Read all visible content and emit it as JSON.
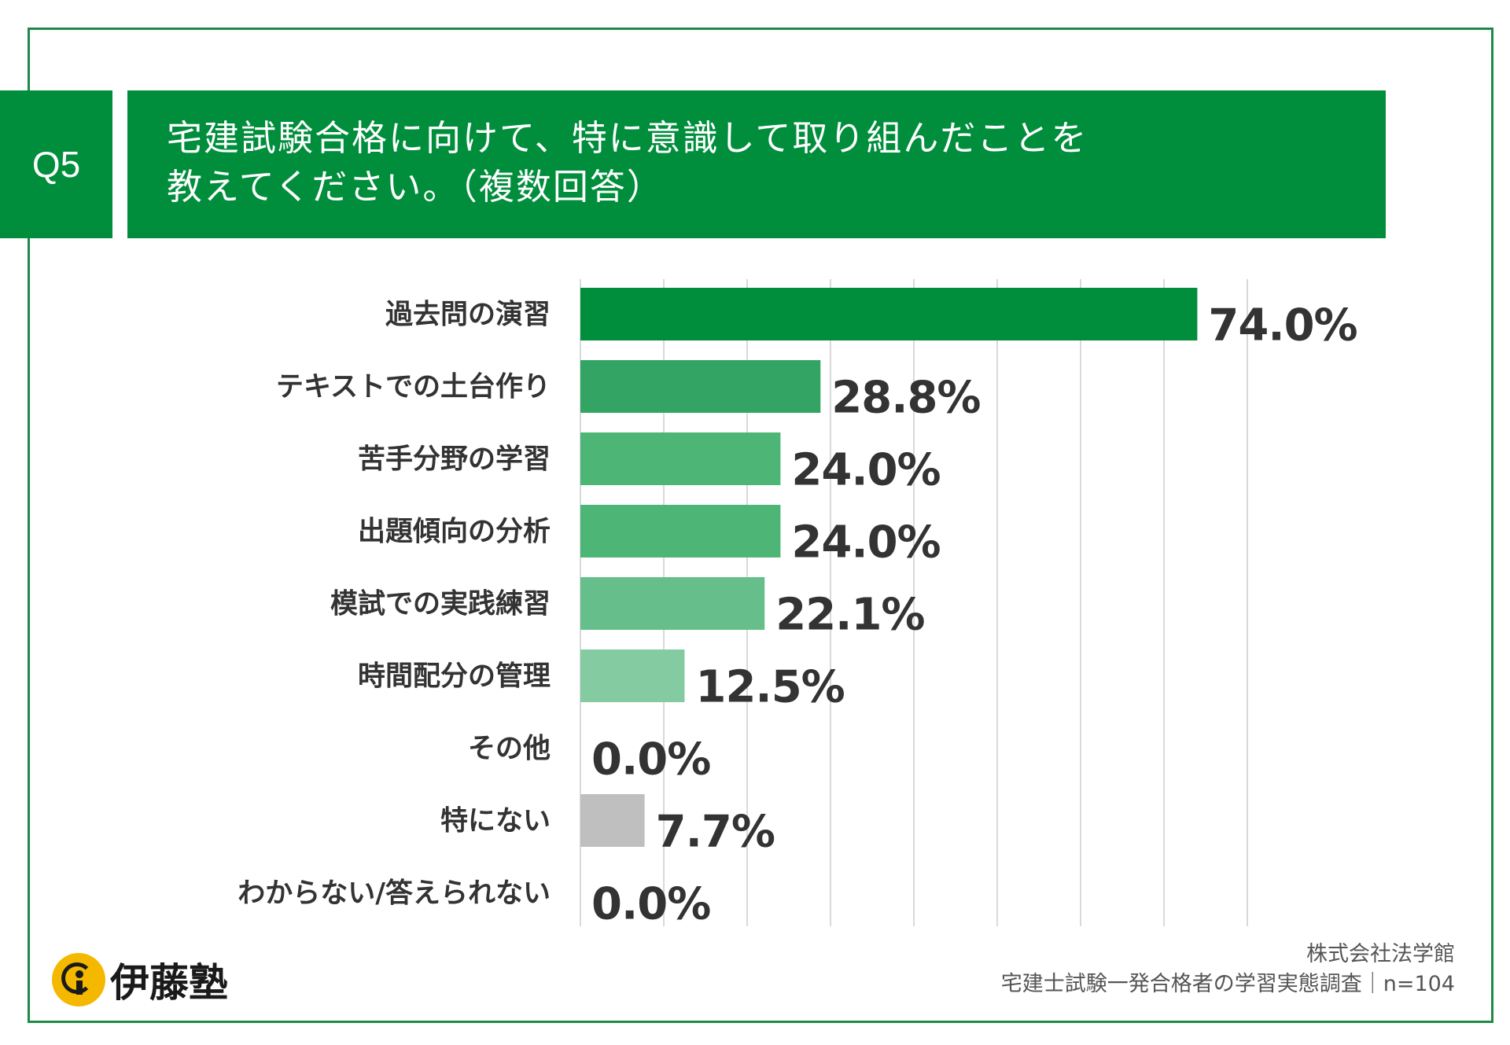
{
  "question": {
    "number": "Q5",
    "title_line1": "宅建試験合格に向けて、特に意識して取り組んだことを",
    "title_line2": "教えてください。（複数回答）"
  },
  "chart_data": {
    "type": "bar",
    "orientation": "horizontal",
    "title": "宅建試験合格に向けて、特に意識して取り組んだことを教えてください。（複数回答）",
    "xlabel": "",
    "ylabel": "",
    "xlim": [
      0,
      80
    ],
    "grid": true,
    "categories": [
      "過去問の演習",
      "テキストでの土台作り",
      "苦手分野の学習",
      "出題傾向の分析",
      "模試での実践練習",
      "時間配分の管理",
      "その他",
      "特にない",
      "わからない/答えられない"
    ],
    "values": [
      74.0,
      28.8,
      24.0,
      24.0,
      22.1,
      12.5,
      0.0,
      7.7,
      0.0
    ],
    "value_labels": [
      "74.0%",
      "28.8%",
      "24.0%",
      "24.0%",
      "22.1%",
      "12.5%",
      "0.0%",
      "7.7%",
      "0.0%"
    ],
    "bar_colors": [
      "#008e3c",
      "#33a463",
      "#4db576",
      "#4db576",
      "#66bf8a",
      "#85cba1",
      "#85cba1",
      "#bfbfbf",
      "#bfbfbf"
    ]
  },
  "footer": {
    "company": "株式会社法学館",
    "survey": "宅建士試験一発合格者の学習実態調査｜n=104"
  },
  "logo": {
    "text": "伊藤塾",
    "icon": "info-i-icon"
  }
}
